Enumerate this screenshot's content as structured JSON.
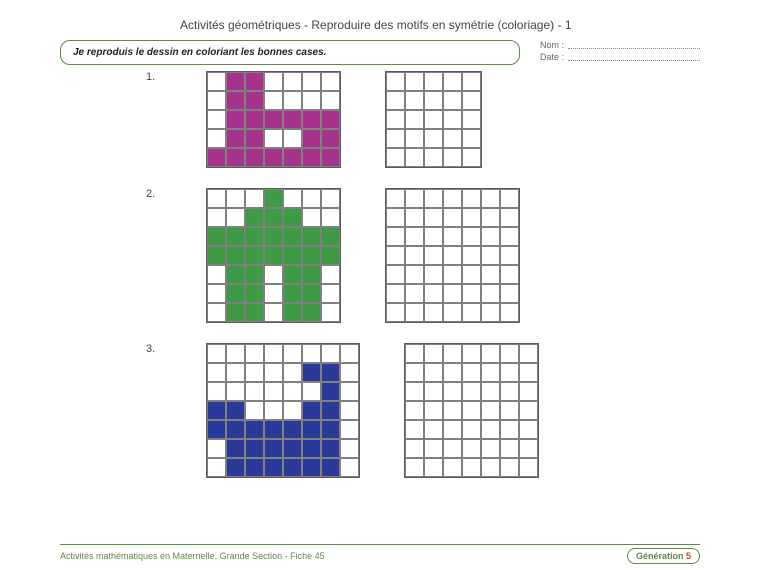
{
  "title": "Activités géométriques - Reproduire des motifs en symétrie (coloriage) - 1",
  "instruction": "Je reproduis le dessin en coloriant les bonnes cases.",
  "nameLabel": "Nom :",
  "dateLabel": "Date :",
  "footerText": "Activités mathématiques en Maternelle, Grande Section - Fiche 45",
  "brand": {
    "name": "Génération",
    "num": "5"
  },
  "cellPx": 19,
  "gridBorder": "#5a5a5a",
  "cellBorder": "#808080",
  "pageBg": "#ffffff",
  "accent": "#5c8a4a",
  "exercises": [
    {
      "n": "1.",
      "rows": 5,
      "cols": 7,
      "fillColor": "#a6328c",
      "cells": [
        [
          0,
          1
        ],
        [
          0,
          2
        ],
        [
          1,
          1
        ],
        [
          1,
          2
        ],
        [
          2,
          1
        ],
        [
          2,
          2
        ],
        [
          2,
          3
        ],
        [
          2,
          4
        ],
        [
          2,
          5
        ],
        [
          2,
          6
        ],
        [
          3,
          1
        ],
        [
          3,
          2
        ],
        [
          3,
          5
        ],
        [
          3,
          6
        ],
        [
          4,
          0
        ],
        [
          4,
          1
        ],
        [
          4,
          2
        ],
        [
          4,
          3
        ],
        [
          4,
          4
        ],
        [
          4,
          5
        ],
        [
          4,
          6
        ]
      ],
      "blank": {
        "rows": 5,
        "cols": 5
      }
    },
    {
      "n": "2.",
      "rows": 7,
      "cols": 7,
      "fillColor": "#3e9a45",
      "cells": [
        [
          0,
          3
        ],
        [
          1,
          2
        ],
        [
          1,
          3
        ],
        [
          1,
          4
        ],
        [
          2,
          0
        ],
        [
          2,
          1
        ],
        [
          2,
          2
        ],
        [
          2,
          3
        ],
        [
          2,
          4
        ],
        [
          2,
          5
        ],
        [
          2,
          6
        ],
        [
          3,
          0
        ],
        [
          3,
          1
        ],
        [
          3,
          2
        ],
        [
          3,
          3
        ],
        [
          3,
          4
        ],
        [
          3,
          5
        ],
        [
          3,
          6
        ],
        [
          4,
          1
        ],
        [
          4,
          2
        ],
        [
          4,
          4
        ],
        [
          4,
          5
        ],
        [
          5,
          1
        ],
        [
          5,
          2
        ],
        [
          5,
          4
        ],
        [
          5,
          5
        ],
        [
          6,
          1
        ],
        [
          6,
          2
        ],
        [
          6,
          4
        ],
        [
          6,
          5
        ]
      ],
      "blank": {
        "rows": 7,
        "cols": 7
      }
    },
    {
      "n": "3.",
      "rows": 7,
      "cols": 8,
      "fillColor": "#2a3a9a",
      "cells": [
        [
          1,
          5
        ],
        [
          1,
          6
        ],
        [
          2,
          6
        ],
        [
          3,
          0
        ],
        [
          3,
          1
        ],
        [
          3,
          5
        ],
        [
          3,
          6
        ],
        [
          4,
          0
        ],
        [
          4,
          1
        ],
        [
          4,
          2
        ],
        [
          4,
          3
        ],
        [
          4,
          4
        ],
        [
          4,
          5
        ],
        [
          4,
          6
        ],
        [
          5,
          1
        ],
        [
          5,
          2
        ],
        [
          5,
          3
        ],
        [
          5,
          4
        ],
        [
          5,
          5
        ],
        [
          5,
          6
        ],
        [
          6,
          1
        ],
        [
          6,
          2
        ],
        [
          6,
          3
        ],
        [
          6,
          4
        ],
        [
          6,
          5
        ],
        [
          6,
          6
        ]
      ],
      "blank": {
        "rows": 7,
        "cols": 7
      }
    }
  ]
}
